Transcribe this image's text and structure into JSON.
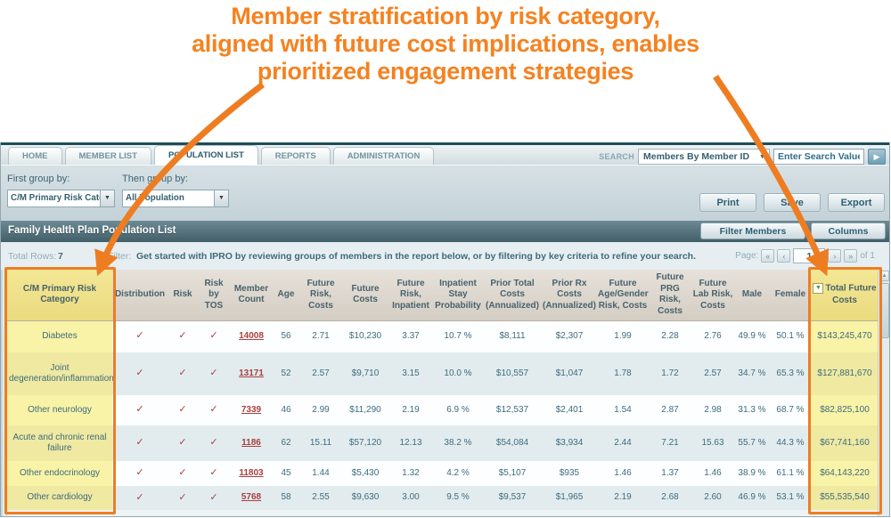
{
  "annotation": {
    "lines": [
      "Member stratification by risk category,",
      "aligned with future cost implications, enables",
      "prioritized engagement strategies"
    ]
  },
  "colors": {
    "accent_orange": "#EE7D22",
    "highlight_yellow": "#F7F1A3",
    "panel_teal": "#4A646E",
    "link_red": "#A8413E"
  },
  "icons": {
    "dropdown_arrow": "▼",
    "go_arrow": "▶",
    "scroll_up": "▲",
    "sort_arrow": "▼",
    "pager_first": "«",
    "pager_prev": "‹",
    "pager_next": "›",
    "pager_last": "»"
  },
  "nav": {
    "tabs": [
      {
        "label": "HOME",
        "active": false
      },
      {
        "label": "MEMBER LIST",
        "active": false
      },
      {
        "label": "POPULATION LIST",
        "active": true
      },
      {
        "label": "REPORTS",
        "active": false
      },
      {
        "label": "ADMINISTRATION",
        "active": false
      }
    ],
    "search_label": "SEARCH",
    "search_dropdown": "Members By Member ID",
    "search_placeholder": "Enter Search Value"
  },
  "toolbar": {
    "first_group_label": "First group by:",
    "first_group_value": "C/M Primary Risk Category",
    "then_group_label": "Then group by:",
    "then_group_value": "All Population",
    "print_label": "Print",
    "save_label": "Save",
    "export_label": "Export"
  },
  "panel": {
    "title": "Family Health Plan Population List",
    "filter_members_button": "Filter Members",
    "columns_button": "Columns"
  },
  "info_bar": {
    "total_rows_label": "Total Rows:",
    "total_rows_value": "7",
    "filter_label": "Filter:",
    "filter_text": "Get started with IPRO by reviewing groups of members in the report below, or by filtering by key criteria to refine your search.",
    "page_label": "Page:",
    "page_value": "1",
    "page_of": "of 1"
  },
  "table": {
    "columns": [
      {
        "label": "C/M Primary Risk Category",
        "highlight": true
      },
      {
        "label": "Distribution"
      },
      {
        "label": "Risk"
      },
      {
        "label": "Risk by TOS"
      },
      {
        "label": "Member Count"
      },
      {
        "label": "Age"
      },
      {
        "label": "Future Risk, Costs"
      },
      {
        "label": "Future Costs"
      },
      {
        "label": "Future Risk, Inpatient"
      },
      {
        "label": "Inpatient Stay Probability"
      },
      {
        "label": "Prior Total Costs (Annualized)"
      },
      {
        "label": "Prior Rx Costs (Annualized)"
      },
      {
        "label": "Future Age/Gender Risk, Costs"
      },
      {
        "label": "Future PRG Risk, Costs"
      },
      {
        "label": "Future Lab Risk, Costs"
      },
      {
        "label": "Male"
      },
      {
        "label": "Female"
      },
      {
        "label": "Total Future Costs",
        "highlight": true,
        "sortable": true
      }
    ],
    "rows": [
      [
        "Diabetes",
        "✓",
        "✓",
        "✓",
        "14008",
        "56",
        "2.71",
        "$10,230",
        "3.37",
        "10.7 %",
        "$8,111",
        "$2,307",
        "1.99",
        "2.28",
        "2.76",
        "49.9 %",
        "50.1 %",
        "$143,245,470"
      ],
      [
        "Joint degeneration/inflammation",
        "✓",
        "✓",
        "✓",
        "13171",
        "52",
        "2.57",
        "$9,710",
        "3.15",
        "10.0 %",
        "$10,557",
        "$1,047",
        "1.78",
        "1.72",
        "2.57",
        "34.7 %",
        "65.3 %",
        "$127,881,670"
      ],
      [
        "Other neurology",
        "✓",
        "✓",
        "✓",
        "7339",
        "46",
        "2.99",
        "$11,290",
        "2.19",
        "6.9 %",
        "$12,537",
        "$2,401",
        "1.54",
        "2.87",
        "2.98",
        "31.3 %",
        "68.7 %",
        "$82,825,100"
      ],
      [
        "Acute and chronic renal failure",
        "✓",
        "✓",
        "✓",
        "1186",
        "62",
        "15.11",
        "$57,120",
        "12.13",
        "38.2 %",
        "$54,084",
        "$3,934",
        "2.44",
        "7.21",
        "15.63",
        "55.7 %",
        "44.3 %",
        "$67,741,160"
      ],
      [
        "Other endocrinology",
        "✓",
        "✓",
        "✓",
        "11803",
        "45",
        "1.44",
        "$5,430",
        "1.32",
        "4.2 %",
        "$5,107",
        "$935",
        "1.46",
        "1.37",
        "1.46",
        "38.9 %",
        "61.1 %",
        "$64,143,220"
      ],
      [
        "Other cardiology",
        "✓",
        "✓",
        "✓",
        "5768",
        "58",
        "2.55",
        "$9,630",
        "3.00",
        "9.5 %",
        "$9,537",
        "$1,965",
        "2.19",
        "2.68",
        "2.60",
        "46.9 %",
        "53.1 %",
        "$55,535,540"
      ]
    ]
  }
}
